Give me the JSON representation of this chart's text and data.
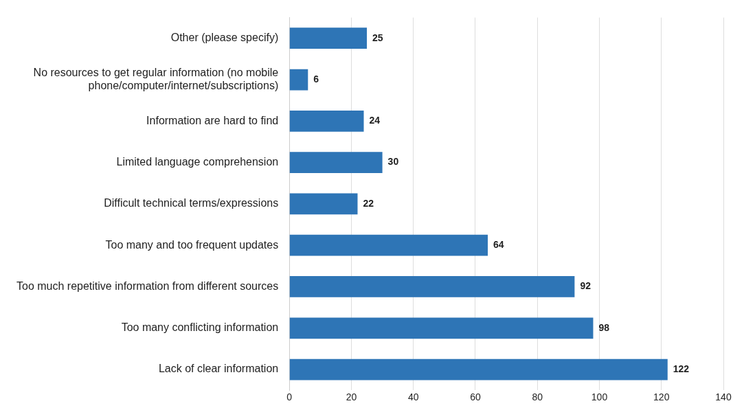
{
  "chart_data": {
    "type": "bar",
    "orientation": "horizontal",
    "categories": [
      "Other (please specify)",
      "No resources to get regular information (no mobile phone/computer/internet/subscriptions)",
      "Information are hard to find",
      "Limited language comprehension",
      "Difficult technical terms/expressions",
      "Too many and too frequent updates",
      "Too much repetitive information from different sources",
      "Too many conflicting information",
      "Lack of clear information"
    ],
    "values": [
      25,
      6,
      24,
      30,
      22,
      64,
      92,
      98,
      122
    ],
    "color": "#2e75b6",
    "xlim": [
      0,
      140
    ],
    "xticks": [
      0,
      20,
      40,
      60,
      80,
      100,
      120,
      140
    ],
    "grid": "x",
    "legend": false,
    "data_labels": true
  }
}
